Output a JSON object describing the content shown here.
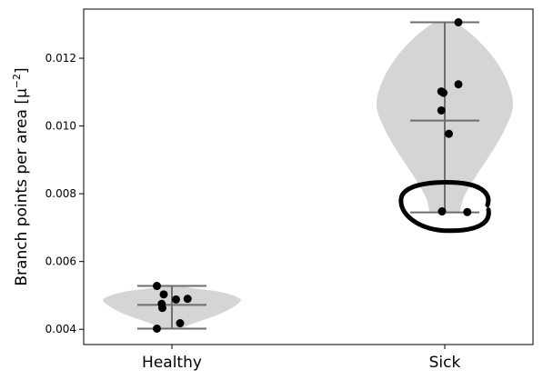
{
  "chart_data": {
    "type": "violin",
    "categories": [
      "Healthy",
      "Sick"
    ],
    "ylabel": "Branch points per area [μ",
    "ylabel_sup": "−2",
    "ylabel_end": "]",
    "xlabel": "",
    "title": "",
    "ylim": [
      0.00355,
      0.01345
    ],
    "yticks": [
      0.004,
      0.006,
      0.008,
      0.01,
      0.012
    ],
    "ytick_labels": [
      "0.004",
      "0.006",
      "0.008",
      "0.010",
      "0.012"
    ],
    "grid": false,
    "colors": {
      "violin": "#d5d5d5",
      "lines": "#6e6e6e",
      "points": "#000000",
      "annotation": "#000000"
    },
    "series": [
      {
        "category": "Healthy",
        "min": 0.00402,
        "median": 0.00472,
        "max": 0.00528,
        "points": [
          {
            "x": -0.22,
            "y": 0.00528
          },
          {
            "x": -0.12,
            "y": 0.00503
          },
          {
            "x": -0.15,
            "y": 0.00475
          },
          {
            "x": -0.14,
            "y": 0.00463
          },
          {
            "x": 0.06,
            "y": 0.00488
          },
          {
            "x": 0.23,
            "y": 0.0049
          },
          {
            "x": 0.12,
            "y": 0.00418
          },
          {
            "x": -0.22,
            "y": 0.00402
          }
        ],
        "violin_profile": [
          {
            "y": 0.00402,
            "w": 0.12
          },
          {
            "y": 0.0042,
            "w": 0.35
          },
          {
            "y": 0.00445,
            "w": 0.7
          },
          {
            "y": 0.0047,
            "w": 0.93
          },
          {
            "y": 0.0049,
            "w": 1.0
          },
          {
            "y": 0.0051,
            "w": 0.72
          },
          {
            "y": 0.0052,
            "w": 0.35
          },
          {
            "y": 0.00528,
            "w": 0.1
          }
        ]
      },
      {
        "category": "Sick",
        "min": 0.00745,
        "median": 0.01016,
        "max": 0.01306,
        "points": [
          {
            "x": 0.2,
            "y": 0.01306
          },
          {
            "x": 0.2,
            "y": 0.01123
          },
          {
            "x": -0.05,
            "y": 0.01102
          },
          {
            "x": -0.02,
            "y": 0.01098
          },
          {
            "x": -0.05,
            "y": 0.01046
          },
          {
            "x": 0.06,
            "y": 0.00977
          },
          {
            "x": -0.04,
            "y": 0.00748
          },
          {
            "x": 0.33,
            "y": 0.00746
          }
        ],
        "violin_profile": [
          {
            "y": 0.00745,
            "w": 0.22
          },
          {
            "y": 0.0079,
            "w": 0.28
          },
          {
            "y": 0.0085,
            "w": 0.45
          },
          {
            "y": 0.0092,
            "w": 0.68
          },
          {
            "y": 0.0099,
            "w": 0.88
          },
          {
            "y": 0.0106,
            "w": 1.0
          },
          {
            "y": 0.0113,
            "w": 0.92
          },
          {
            "y": 0.012,
            "w": 0.72
          },
          {
            "y": 0.0126,
            "w": 0.45
          },
          {
            "y": 0.013,
            "w": 0.2
          },
          {
            "y": 0.01306,
            "w": 0.1
          }
        ]
      }
    ],
    "annotation": {
      "type": "hand-drawn-circle",
      "around_category": "Sick",
      "around_y": [
        0.0074,
        0.0082
      ]
    }
  }
}
